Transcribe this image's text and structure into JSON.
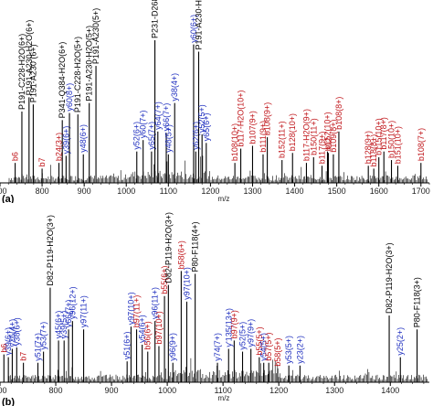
{
  "colors": {
    "black": "#000000",
    "blue": "#1f2fbf",
    "red": "#c0151a"
  },
  "chart_data": [
    {
      "type": "bar",
      "panel": "(a)",
      "xlabel": "m/z",
      "xlim": [
        700,
        1720
      ],
      "xticks": [
        700,
        800,
        900,
        1000,
        1100,
        1200,
        1300,
        1400,
        1500,
        1600,
        1700
      ],
      "ylim": [
        0,
        100
      ],
      "grid": false,
      "peaks": [
        {
          "x": 736,
          "y": 14,
          "label": "b6",
          "color": "red"
        },
        {
          "x": 752,
          "y": 50,
          "label": "P191-C228-H2O(6+)",
          "color": "black"
        },
        {
          "x": 769,
          "y": 60,
          "label": "P191-A230-H2O(6+)",
          "color": "black"
        },
        {
          "x": 779,
          "y": 55,
          "label": "P191-A230 (6+)",
          "color": "black"
        },
        {
          "x": 800,
          "y": 10,
          "label": "b7",
          "color": "red"
        },
        {
          "x": 840,
          "y": 14,
          "label": "b24(3+)",
          "color": "red"
        },
        {
          "x": 848,
          "y": 44,
          "label": "P341-Q384-H2O(6+)",
          "color": "black"
        },
        {
          "x": 857,
          "y": 19,
          "label": "y39(6+)",
          "color": "blue"
        },
        {
          "x": 865,
          "y": 49,
          "label": "y60(8+)",
          "color": "blue"
        },
        {
          "x": 885,
          "y": 48,
          "label": "P191-C228-H2O(5+)",
          "color": "black"
        },
        {
          "x": 898,
          "y": 20,
          "label": "y48(6+)",
          "color": "blue"
        },
        {
          "x": 912,
          "y": 56,
          "label": "P191-A230-H2O(5+)",
          "color": "black"
        },
        {
          "x": 928,
          "y": 82,
          "label": "P191-A230(5+)",
          "color": "black"
        },
        {
          "x": 1025,
          "y": 22,
          "label": "y52(6+)",
          "color": "blue"
        },
        {
          "x": 1040,
          "y": 30,
          "label": "y60(7+)",
          "color": "blue"
        },
        {
          "x": 1060,
          "y": 22,
          "label": "y65(7+)",
          "color": "blue"
        },
        {
          "x": 1068,
          "y": 100,
          "label": "P231-D268 (4+)",
          "color": "black"
        },
        {
          "x": 1075,
          "y": 36,
          "label": "y64(7+)",
          "color": "blue"
        },
        {
          "x": 1095,
          "y": 35,
          "label": "y66(7+)",
          "color": "blue"
        },
        {
          "x": 1100,
          "y": 20,
          "label": "y48(5+)",
          "color": "blue"
        },
        {
          "x": 1115,
          "y": 56,
          "label": "y38(4+)",
          "color": "blue"
        },
        {
          "x": 1160,
          "y": 97,
          "label": "y60(6+)",
          "color": "blue"
        },
        {
          "x": 1165,
          "y": 22,
          "label": "y62(6+)",
          "color": "blue"
        },
        {
          "x": 1172,
          "y": 92,
          "label": "P191-A230-H2O(4+)",
          "color": "black"
        },
        {
          "x": 1180,
          "y": 34,
          "label": "y52(5+)",
          "color": "blue"
        },
        {
          "x": 1190,
          "y": 28,
          "label": "y65(6+)",
          "color": "blue"
        },
        {
          "x": 1258,
          "y": 14,
          "label": "b108(10+)",
          "color": "red"
        },
        {
          "x": 1272,
          "y": 24,
          "label": "b117-H2O(10+)",
          "color": "red"
        },
        {
          "x": 1300,
          "y": 26,
          "label": "b107(9+)",
          "color": "red"
        },
        {
          "x": 1325,
          "y": 20,
          "label": "b111(9+)",
          "color": "red"
        },
        {
          "x": 1335,
          "y": 32,
          "label": "b108(9+)",
          "color": "red"
        },
        {
          "x": 1370,
          "y": 16,
          "label": "b152(11+)",
          "color": "red"
        },
        {
          "x": 1395,
          "y": 21,
          "label": "b128(10+)",
          "color": "red"
        },
        {
          "x": 1428,
          "y": 14,
          "label": "b117-H2O(9+)",
          "color": "red"
        },
        {
          "x": 1445,
          "y": 18,
          "label": "b150(11+)",
          "color": "red"
        },
        {
          "x": 1465,
          "y": 12,
          "label": "b117(9+)",
          "color": "red"
        },
        {
          "x": 1478,
          "y": 22,
          "label": "b152(10+)",
          "color": "red"
        },
        {
          "x": 1480,
          "y": 21,
          "label": "b12",
          "color": "red"
        },
        {
          "x": 1492,
          "y": 20,
          "label": "b109(8+)",
          "color": "red"
        },
        {
          "x": 1505,
          "y": 36,
          "label": "b108(8+)",
          "color": "red"
        },
        {
          "x": 1575,
          "y": 12,
          "label": "b128(9+)",
          "color": "red"
        },
        {
          "x": 1588,
          "y": 10,
          "label": "b118(8+)",
          "color": "red"
        },
        {
          "x": 1600,
          "y": 18,
          "label": "b115(10+)",
          "color": "red"
        },
        {
          "x": 1612,
          "y": 22,
          "label": "b117(8+)",
          "color": "red"
        },
        {
          "x": 1630,
          "y": 16,
          "label": "b150(10+)",
          "color": "red"
        },
        {
          "x": 1645,
          "y": 12,
          "label": "b151(10+)",
          "color": "red"
        },
        {
          "x": 1700,
          "y": 14,
          "label": "b108(7+)",
          "color": "red"
        }
      ]
    },
    {
      "type": "bar",
      "panel": "(b)",
      "xlabel": "m/z",
      "xlim": [
        700,
        1470
      ],
      "xticks": [
        700,
        800,
        900,
        1000,
        1100,
        1200,
        1300,
        1400
      ],
      "ylim": [
        0,
        100
      ],
      "grid": false,
      "peaks": [
        {
          "x": 707,
          "y": 20,
          "label": "b6",
          "color": "red"
        },
        {
          "x": 715,
          "y": 18,
          "label": "y39(6+)",
          "color": "blue"
        },
        {
          "x": 722,
          "y": 24,
          "label": "y26(4+)",
          "color": "blue"
        },
        {
          "x": 730,
          "y": 25,
          "label": "y38(6+)",
          "color": "blue"
        },
        {
          "x": 742,
          "y": 14,
          "label": "b7",
          "color": "red"
        },
        {
          "x": 768,
          "y": 14,
          "label": "y51(7+)",
          "color": "blue"
        },
        {
          "x": 778,
          "y": 22,
          "label": "y53(7+)",
          "color": "blue"
        },
        {
          "x": 790,
          "y": 68,
          "label": "D82-P119-H2O(3+)",
          "color": "black"
        },
        {
          "x": 805,
          "y": 30,
          "label": "y45(6+)",
          "color": "blue"
        },
        {
          "x": 815,
          "y": 30,
          "label": "y39(5+)",
          "color": "blue"
        },
        {
          "x": 823,
          "y": 38,
          "label": "y66(7+)",
          "color": "blue"
        },
        {
          "x": 830,
          "y": 44,
          "label": "y96(12+)",
          "color": "blue"
        },
        {
          "x": 850,
          "y": 38,
          "label": "y97(11+)",
          "color": "blue"
        },
        {
          "x": 928,
          "y": 15,
          "label": "y51(6+)",
          "color": "blue"
        },
        {
          "x": 935,
          "y": 40,
          "label": "y97(10+)",
          "color": "blue"
        },
        {
          "x": 945,
          "y": 38,
          "label": "b97(11+)",
          "color": "red"
        },
        {
          "x": 955,
          "y": 27,
          "label": "y54(6+)",
          "color": "blue"
        },
        {
          "x": 965,
          "y": 22,
          "label": "b56(6+)",
          "color": "red"
        },
        {
          "x": 978,
          "y": 44,
          "label": "y96(11+)",
          "color": "blue"
        },
        {
          "x": 985,
          "y": 26,
          "label": "b97(10+)",
          "color": "red"
        },
        {
          "x": 995,
          "y": 62,
          "label": "b55(6+)",
          "color": "red"
        },
        {
          "x": 1002,
          "y": 70,
          "label": "D82-P119-H2O(3+)",
          "color": "black"
        },
        {
          "x": 1010,
          "y": 14,
          "label": "y96(9+)",
          "color": "blue"
        },
        {
          "x": 1025,
          "y": 80,
          "label": "b58(6+)",
          "color": "red"
        },
        {
          "x": 1035,
          "y": 58,
          "label": "y97(10+)",
          "color": "blue"
        },
        {
          "x": 1050,
          "y": 78,
          "label": "P80-F118(4+)",
          "color": "black"
        },
        {
          "x": 1090,
          "y": 14,
          "label": "y74(7+)",
          "color": "blue"
        },
        {
          "x": 1110,
          "y": 24,
          "label": "y'135(13+)",
          "color": "blue"
        },
        {
          "x": 1120,
          "y": 30,
          "label": "b97(9+)",
          "color": "red"
        },
        {
          "x": 1135,
          "y": 22,
          "label": "y52(5+)",
          "color": "blue"
        },
        {
          "x": 1150,
          "y": 24,
          "label": "y97(9+)",
          "color": "blue"
        },
        {
          "x": 1165,
          "y": 18,
          "label": "b55(5+)",
          "color": "red"
        },
        {
          "x": 1173,
          "y": 14,
          "label": "y54(5+)",
          "color": "blue"
        },
        {
          "x": 1182,
          "y": 14,
          "label": "b57(5+)",
          "color": "red"
        },
        {
          "x": 1198,
          "y": 10,
          "label": "b58(5+)",
          "color": "red"
        },
        {
          "x": 1218,
          "y": 12,
          "label": "y53(5+)",
          "color": "blue"
        },
        {
          "x": 1238,
          "y": 12,
          "label": "y23(2+)",
          "color": "blue"
        },
        {
          "x": 1398,
          "y": 48,
          "label": "D82-P119-H2O(3+)",
          "color": "black"
        },
        {
          "x": 1418,
          "y": 18,
          "label": "y25(2+)",
          "color": "blue"
        },
        {
          "x": 1448,
          "y": 38,
          "label": "P80-F118(3+)",
          "color": "black"
        }
      ]
    }
  ]
}
